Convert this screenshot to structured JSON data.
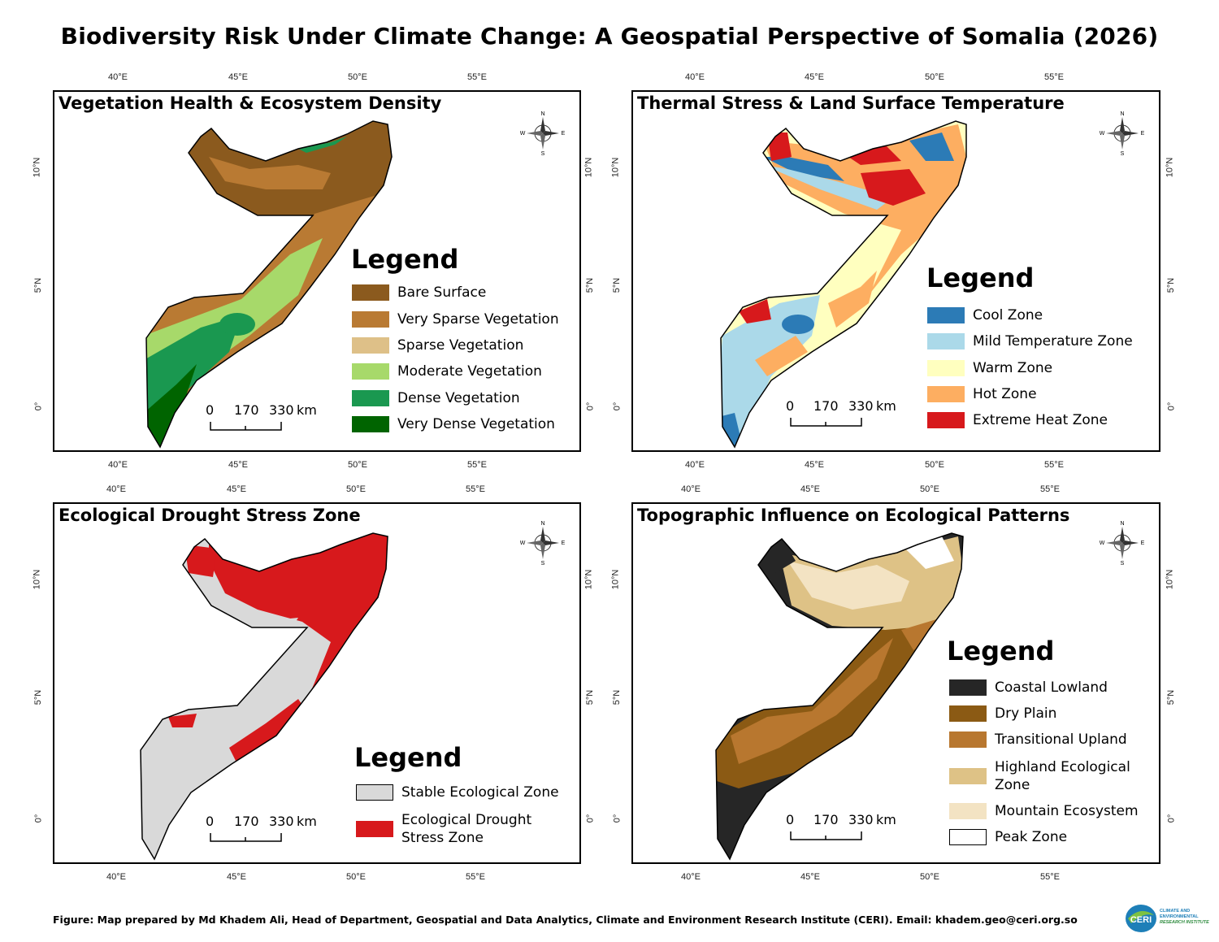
{
  "title": "Biodiversity Risk Under Climate Change: A Geospatial Perspective of Somalia (2026)",
  "footer": "Figure: Map prepared by Md Khadem Ali, Head of Department, Geospatial and Data Analytics, Climate and Environment Research Institute (CERI). Email: khadem.geo@ceri.org.so",
  "logo": {
    "text": "CERI",
    "subtitle_1": "CLIMATE AND",
    "subtitle_2": "ENVIRONMENTAL",
    "subtitle_3": "RESEARCH INSTITUTE"
  },
  "axes": {
    "lon_ticks": [
      "40°E",
      "45°E",
      "50°E",
      "55°E"
    ],
    "lat_ticks": [
      "10°N",
      "5°N",
      "0°"
    ]
  },
  "compass": {
    "n": "N",
    "s": "S",
    "e": "E",
    "w": "W"
  },
  "scale_bar": {
    "zero": "0",
    "mid": "170",
    "max": "330",
    "unit": "km"
  },
  "legend_title": "Legend",
  "panels": {
    "vegetation": {
      "title": "Vegetation Health & Ecosystem Density",
      "legend": [
        {
          "label": "Bare Surface",
          "color": "#8B5A1E"
        },
        {
          "label": "Very Sparse Vegetation",
          "color": "#B97A33"
        },
        {
          "label": "Sparse Vegetation",
          "color": "#DEC088"
        },
        {
          "label": "Moderate Vegetation",
          "color": "#A7D96A"
        },
        {
          "label": "Dense Vegetation",
          "color": "#1A9850"
        },
        {
          "label": "Very Dense Vegetation",
          "color": "#006400"
        }
      ]
    },
    "thermal": {
      "title": "Thermal Stress & Land Surface Temperature",
      "legend": [
        {
          "label": "Cool Zone",
          "color": "#2C7BB6"
        },
        {
          "label": "Mild Temperature Zone",
          "color": "#ABD9E9"
        },
        {
          "label": "Warm Zone",
          "color": "#FFFFBF"
        },
        {
          "label": "Hot Zone",
          "color": "#FDAE61"
        },
        {
          "label": "Extreme Heat Zone",
          "color": "#D7191C"
        }
      ]
    },
    "drought": {
      "title": "Ecological Drought Stress Zone",
      "legend": [
        {
          "label": "Stable Ecological Zone",
          "color": "#D9D9D9"
        },
        {
          "label": "Ecological Drought",
          "label2": "Stress Zone",
          "color": "#D7191C"
        }
      ]
    },
    "topo": {
      "title": "Topographic Influence on Ecological Patterns",
      "legend": [
        {
          "label": "Coastal Lowland",
          "color": "#262626"
        },
        {
          "label": "Dry Plain",
          "color": "#8B5A14"
        },
        {
          "label": "Transitional Upland",
          "color": "#B8772F"
        },
        {
          "label": "Highland Ecological",
          "label2": "Zone",
          "color": "#DEC286"
        },
        {
          "label": "Mountain Ecosystem",
          "color": "#F3E3C3"
        },
        {
          "label": "Peak Zone",
          "color": "#FFFFFF"
        }
      ]
    }
  }
}
